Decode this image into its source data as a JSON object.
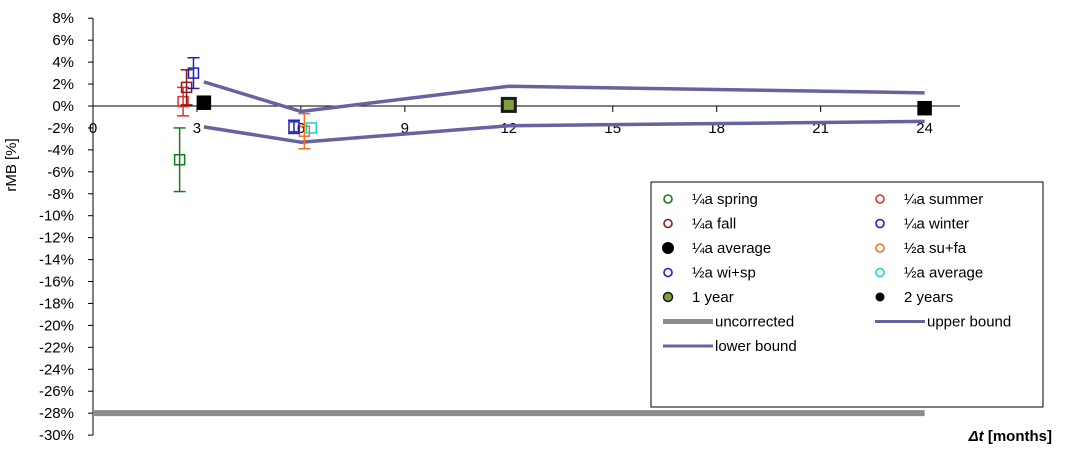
{
  "chart_data": {
    "type": "scatter",
    "title": "",
    "xlabel": "Δt [months]",
    "xlabel_var": "Δt",
    "xlabel_unit": " [months]",
    "ylabel": "rMB  [%]",
    "xlim": [
      0,
      26
    ],
    "ylim": [
      -30,
      8
    ],
    "xticks": [
      0,
      3,
      6,
      9,
      12,
      15,
      18,
      21,
      24
    ],
    "xtick_labels": [
      "0",
      "3",
      "6",
      "9",
      "12",
      "15",
      "18",
      "21",
      "24"
    ],
    "yticks": [
      8,
      6,
      4,
      2,
      0,
      -2,
      -4,
      -6,
      -8,
      -10,
      -12,
      -14,
      -16,
      -18,
      -20,
      -22,
      -24,
      -26,
      -28,
      -30
    ],
    "ytick_labels": [
      "8%",
      "6%",
      "4%",
      "2%",
      "0%",
      "-2%",
      "-4%",
      "-6%",
      "-8%",
      "-10%",
      "-12%",
      "-14%",
      "-16%",
      "-18%",
      "-20%",
      "-22%",
      "-24%",
      "-26%",
      "-28%",
      "-30%"
    ],
    "legend_position": "bottom-right",
    "series": [
      {
        "name": "¼a spring",
        "kind": "marker",
        "marker": "open-square",
        "color": "#1a7a1a",
        "x": [
          2.5
        ],
        "y": [
          -4.9
        ],
        "err": [
          2.9
        ]
      },
      {
        "name": "¼a summer",
        "kind": "marker",
        "marker": "open-square",
        "color": "#e03030",
        "x": [
          2.6
        ],
        "y": [
          0.4
        ],
        "err": [
          1.3
        ]
      },
      {
        "name": "¼a fall",
        "kind": "marker",
        "marker": "open-square",
        "color": "#8b1a1a",
        "x": [
          2.7
        ],
        "y": [
          1.7
        ],
        "err": [
          1.6
        ]
      },
      {
        "name": "¼a winter",
        "kind": "marker",
        "marker": "open-square",
        "color": "#2020c0",
        "x": [
          2.9
        ],
        "y": [
          3.0
        ],
        "err": [
          1.4
        ]
      },
      {
        "name": "¼a average",
        "kind": "marker",
        "marker": "filled-square",
        "color": "#000000",
        "x": [
          3.2
        ],
        "y": [
          0.3
        ],
        "err": [
          0
        ]
      },
      {
        "name": "½a su+fa",
        "kind": "marker",
        "marker": "open-square",
        "color": "#f07020",
        "x": [
          6.1
        ],
        "y": [
          -2.3
        ],
        "err": [
          1.6
        ]
      },
      {
        "name": "½a wi+sp",
        "kind": "marker",
        "marker": "open-square",
        "color": "#2020c0",
        "x": [
          5.8
        ],
        "y": [
          -1.9
        ],
        "err": [
          0.6
        ]
      },
      {
        "name": "½a average",
        "kind": "marker",
        "marker": "open-square",
        "color": "#20d0d0",
        "x": [
          6.3
        ],
        "y": [
          -2.0
        ],
        "err": [
          0
        ]
      },
      {
        "name": "1 year",
        "kind": "marker",
        "marker": "olive-square",
        "color": "#1a1a1a",
        "fill": "#7f9f3f",
        "x": [
          12
        ],
        "y": [
          0.1
        ],
        "err": [
          0
        ]
      },
      {
        "name": "2 years",
        "kind": "marker",
        "marker": "filled-square",
        "color": "#000000",
        "x": [
          24
        ],
        "y": [
          -0.2
        ],
        "err": [
          0
        ]
      },
      {
        "name": "uncorrected",
        "kind": "line",
        "color": "#8c8c8c",
        "width": 6,
        "x": [
          0,
          6,
          24
        ],
        "y": [
          -28,
          -28,
          -28
        ]
      },
      {
        "name": "upper bound",
        "kind": "line",
        "color": "#6464a0",
        "width": 3.5,
        "x": [
          3.2,
          6,
          12,
          24
        ],
        "y": [
          2.2,
          -0.5,
          1.8,
          1.2
        ]
      },
      {
        "name": "lower bound",
        "kind": "line",
        "color": "#6464a0",
        "width": 3.5,
        "x": [
          3.2,
          6,
          12,
          24
        ],
        "y": [
          -1.9,
          -3.3,
          -1.8,
          -1.4
        ]
      }
    ],
    "legend": [
      {
        "label": "¼a spring",
        "symbol": "open-circle",
        "color": "#1a7a1a"
      },
      {
        "label": "¼a summer",
        "symbol": "open-circle",
        "color": "#e03030"
      },
      {
        "label": "¼a fall",
        "symbol": "open-circle",
        "color": "#8b1a1a"
      },
      {
        "label": "¼a winter",
        "symbol": "open-circle",
        "color": "#2020c0"
      },
      {
        "label": "¼a average",
        "symbol": "filled-circle",
        "color": "#000000"
      },
      {
        "label": "½a su+fa",
        "symbol": "open-circle",
        "color": "#f07020"
      },
      {
        "label": "½a wi+sp",
        "symbol": "open-circle",
        "color": "#2020c0"
      },
      {
        "label": "½a average",
        "symbol": "open-circle",
        "color": "#20d0d0"
      },
      {
        "label": "1 year",
        "symbol": "olive-circle",
        "color": "#1a1a1a",
        "fill": "#7f9f3f"
      },
      {
        "label": "2 years",
        "symbol": "small-filled-circle",
        "color": "#000000"
      },
      {
        "label": "uncorrected",
        "symbol": "thick-line",
        "color": "#8c8c8c"
      },
      {
        "label": "upper bound",
        "symbol": "line",
        "color": "#6464a0"
      },
      {
        "label": "lower bound",
        "symbol": "line",
        "color": "#6464a0"
      }
    ]
  }
}
